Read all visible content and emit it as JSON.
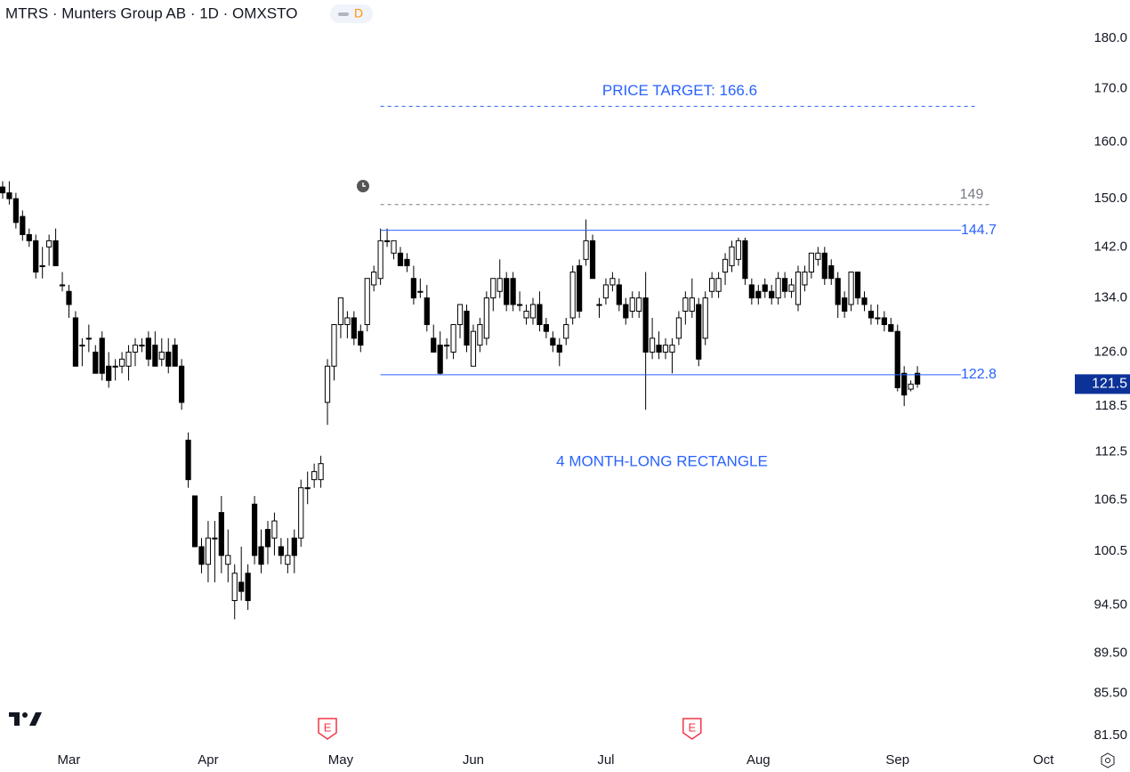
{
  "chart_data": {
    "type": "candlestick",
    "title": "MTRS · Munters Group AB · 1D · OMXSTO",
    "badge": "D",
    "log_scale": true,
    "grid": false,
    "up_color": "#ffffff",
    "down_color": "#000000",
    "ylim": [
      80.35,
      188.0
    ],
    "yticks": [
      {
        "value": 180,
        "label": "180.0"
      },
      {
        "value": 170,
        "label": "170.0"
      },
      {
        "value": 160,
        "label": "160.0"
      },
      {
        "value": 150,
        "label": "150.0"
      },
      {
        "value": 142,
        "label": "142.0"
      },
      {
        "value": 134,
        "label": "134.0"
      },
      {
        "value": 126,
        "label": "126.0"
      },
      118.5,
      112.5,
      106.5,
      100.5,
      {
        "value": 94.5,
        "label": "94.50"
      },
      {
        "value": 89.5,
        "label": "89.50"
      },
      {
        "value": 85.5,
        "label": "85.50"
      },
      {
        "value": 81.5,
        "label": "81.50"
      }
    ],
    "xlim": [
      -0.4,
      160
    ],
    "xticks": [
      {
        "value": 10,
        "label": "Mar"
      },
      {
        "value": 31,
        "label": "Apr"
      },
      {
        "value": 51,
        "label": "May"
      },
      {
        "value": 71,
        "label": "Jun"
      },
      {
        "value": 91,
        "label": "Jul"
      },
      {
        "value": 114,
        "label": "Aug"
      },
      {
        "value": 135,
        "label": "Sep"
      },
      {
        "value": 157,
        "label": "Oct"
      }
    ],
    "open": [
      152,
      151,
      150,
      147,
      144,
      143,
      139,
      142,
      143,
      136,
      135,
      131,
      127,
      128,
      126,
      128,
      124,
      124,
      124,
      124,
      126,
      127,
      128,
      127,
      125,
      126,
      127,
      124,
      114,
      107,
      101,
      99,
      102,
      105,
      99,
      95,
      97,
      98,
      106,
      101,
      103,
      102,
      101,
      99,
      102,
      102,
      108,
      109,
      109,
      119,
      124,
      130,
      130,
      131,
      129,
      130,
      136,
      137,
      143,
      141,
      141,
      140,
      137,
      135,
      134,
      128,
      127,
      127,
      126,
      130,
      132,
      124,
      127,
      128,
      134,
      135,
      137,
      137,
      133,
      131,
      131,
      133,
      130,
      128,
      127,
      128,
      131,
      139,
      140,
      143,
      133,
      134,
      136,
      136,
      133,
      132,
      132,
      134,
      126,
      127,
      126,
      126,
      128,
      132,
      132,
      133,
      128,
      135,
      135,
      138,
      139,
      140,
      143,
      136,
      135,
      136,
      135,
      134,
      137,
      135,
      133,
      136,
      138,
      140,
      141,
      139,
      137,
      134,
      133,
      138,
      134,
      132,
      131,
      131,
      130,
      129,
      123,
      120.8,
      123
    ],
    "high": [
      153,
      153,
      151,
      148,
      145,
      144,
      142,
      144,
      145,
      138,
      136,
      132,
      128,
      130,
      127,
      129,
      126,
      125,
      126,
      127,
      128,
      128,
      129,
      129,
      128,
      128,
      128,
      125,
      115,
      107,
      102,
      104,
      104,
      107,
      103,
      99,
      101,
      99,
      107,
      103,
      104,
      105,
      102,
      102,
      103,
      109,
      110,
      111,
      112,
      125,
      130,
      134,
      132,
      132,
      130,
      137,
      139,
      145,
      145,
      143,
      142,
      141,
      139,
      137,
      136,
      130,
      129,
      128,
      130,
      133,
      133,
      130,
      131,
      135,
      137,
      140,
      138,
      138,
      135,
      133,
      134,
      135,
      131,
      129,
      128,
      131,
      139,
      140,
      146.5,
      144,
      134,
      137,
      138,
      137,
      134,
      135,
      135,
      138,
      131,
      129,
      128,
      128,
      132,
      135,
      137,
      134,
      135,
      138,
      138,
      141,
      143,
      143.5,
      143.5,
      137,
      136,
      137,
      136,
      138,
      138,
      137,
      139,
      139,
      141,
      142,
      142,
      140,
      138,
      135,
      138,
      138,
      135,
      133,
      133,
      132,
      131,
      130,
      124,
      122,
      124
    ],
    "low": [
      150,
      149,
      145,
      143,
      142,
      137,
      137,
      139,
      139,
      135,
      131,
      124,
      124,
      126,
      123,
      122,
      121,
      122,
      123,
      122,
      124,
      126,
      124,
      124,
      124,
      123,
      124,
      118,
      108,
      101,
      98,
      97,
      97,
      98,
      97,
      93,
      95,
      94,
      99,
      98,
      99,
      100,
      99,
      98,
      98,
      101,
      106,
      108,
      108,
      116,
      122,
      128,
      128,
      127,
      126,
      129,
      135,
      136,
      142,
      140,
      139,
      138,
      133,
      134,
      129,
      126,
      122.8,
      125,
      125,
      128,
      126,
      124,
      126,
      127,
      132,
      134,
      132,
      132,
      132,
      130,
      130,
      129,
      128,
      126,
      124,
      127,
      130,
      131,
      139,
      137,
      131,
      133,
      135,
      132,
      130,
      131,
      131,
      118,
      125,
      125,
      125,
      123,
      127,
      130,
      131,
      124,
      127,
      134,
      134,
      136,
      138,
      139,
      136,
      133,
      133,
      134,
      133,
      133,
      134,
      134,
      132,
      135,
      137,
      139,
      136,
      136,
      131,
      131,
      132,
      133,
      132,
      130,
      130,
      129,
      129,
      120.5,
      118.5,
      120.5,
      121
    ],
    "close": [
      151,
      150,
      146,
      144,
      143,
      138,
      139,
      143,
      139,
      136,
      133,
      124,
      127,
      128,
      123,
      123,
      122,
      124,
      125,
      126,
      127,
      127,
      125,
      124,
      126,
      124,
      124,
      119,
      109,
      101,
      99,
      102,
      102,
      100,
      100,
      98,
      96,
      95,
      100,
      99,
      101,
      104,
      100,
      100,
      100,
      108,
      108,
      110,
      111,
      124,
      130,
      134,
      131,
      128,
      127,
      137,
      138,
      143,
      143,
      143,
      139,
      139,
      134,
      135,
      130,
      126,
      123,
      127,
      130,
      133,
      127,
      129,
      130,
      134,
      137,
      137,
      133,
      133,
      133,
      132,
      133,
      130,
      129,
      127,
      126,
      130,
      138,
      132,
      143,
      137,
      133,
      136,
      137,
      133,
      131,
      134,
      134,
      126,
      128,
      126,
      127,
      127,
      131,
      134,
      134,
      125,
      134,
      137,
      137,
      140,
      142,
      143,
      137,
      134,
      134,
      135,
      134,
      137,
      135,
      136,
      138,
      138,
      141,
      141,
      137,
      137,
      133,
      132,
      138,
      134,
      133,
      131,
      131,
      130,
      129,
      121,
      120,
      121.5,
      121.5
    ],
    "lines": [
      {
        "value": 166.6,
        "color": "#2962ff",
        "style": "dashed"
      },
      {
        "value": 149,
        "color": "#787b86",
        "style": "dashed"
      },
      {
        "value": 144.7,
        "color": "#2962ff",
        "style": "solid"
      },
      {
        "value": 122.8,
        "color": "#2962ff",
        "style": "solid"
      }
    ],
    "annotations": [
      {
        "text": "PRICE TARGET: 166.6",
        "color": "#2962ff"
      },
      {
        "text": "4 MONTH-LONG RECTANGLE",
        "color": "#2962ff"
      }
    ],
    "earnings_label": "E",
    "price_tag_color": "#0c3299"
  }
}
